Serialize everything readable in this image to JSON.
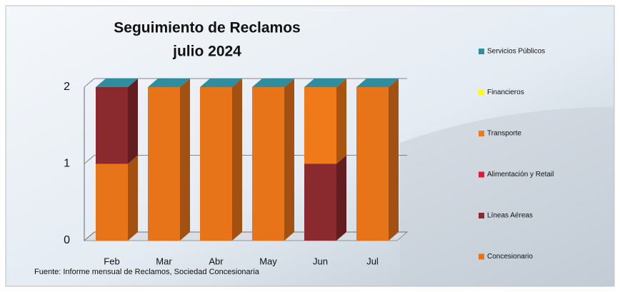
{
  "chart_data": {
    "type": "bar",
    "stacked": true,
    "title": "Seguimiento de Reclamos",
    "subtitle": "julio 2024",
    "source": "Fuente: Informe mensual de Reclamos, Sociedad Concesionaria",
    "categories": [
      "Feb",
      "Mar",
      "Abr",
      "May",
      "Jun",
      "Jul"
    ],
    "series": [
      {
        "name": "Servicios Públicos",
        "color": "#2e8ea0",
        "values": [
          0,
          0,
          0,
          0,
          0,
          0
        ]
      },
      {
        "name": "Financieros",
        "color": "#ffff00",
        "values": [
          0,
          0,
          0,
          0,
          0,
          0
        ]
      },
      {
        "name": "Transporte",
        "color": "#f07a1a",
        "values": [
          0,
          0,
          0,
          0,
          1,
          0
        ]
      },
      {
        "name": "Alimentación y Retail",
        "color": "#e0183a",
        "values": [
          0,
          0,
          0,
          0,
          0,
          0
        ]
      },
      {
        "name": "Líneas Aéreas",
        "color": "#8b2a2e",
        "values": [
          1,
          0,
          0,
          0,
          1,
          0
        ]
      },
      {
        "name": "Concesionario",
        "color": "#e8741a",
        "values": [
          1,
          2,
          2,
          2,
          0,
          2
        ]
      }
    ],
    "ylim": [
      0,
      2
    ],
    "yticks": [
      0,
      1,
      2
    ],
    "grid": true
  }
}
